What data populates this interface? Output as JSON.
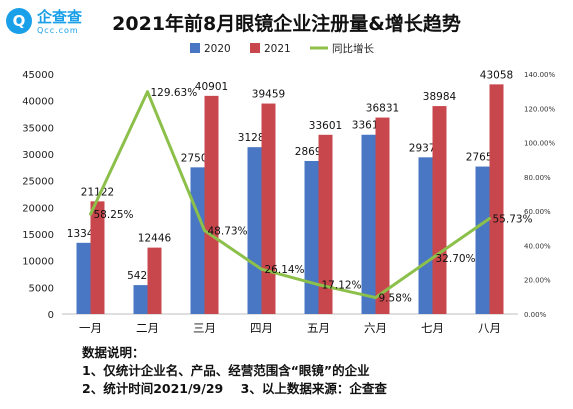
{
  "logo": {
    "glyph": "Q",
    "name": "企查查",
    "domain": "Qcc.com"
  },
  "chart_data": {
    "type": "bar",
    "title": "2021年前8月眼镜企业注册量&增长趋势",
    "categories": [
      "一月",
      "二月",
      "三月",
      "四月",
      "五月",
      "六月",
      "七月",
      "八月"
    ],
    "series": [
      {
        "name": "2020",
        "type": "bar",
        "axis": "left",
        "color": "#4a77c4",
        "values": [
          13347,
          5420,
          27500,
          31281,
          28690,
          33610,
          29377,
          27650
        ],
        "labels": [
          "13347",
          "5420",
          "27500",
          "31281",
          "28690",
          "33610",
          "29377",
          "27650"
        ]
      },
      {
        "name": "2021",
        "type": "bar",
        "axis": "left",
        "color": "#c8474d",
        "values": [
          21122,
          12446,
          40901,
          39459,
          33601,
          36831,
          38984,
          43058
        ],
        "labels": [
          "21122",
          "12446",
          "40901",
          "39459",
          "33601",
          "36831",
          "38984",
          "43058"
        ]
      },
      {
        "name": "同比增长",
        "type": "line",
        "axis": "right",
        "color": "#8cc04a",
        "values": [
          58.25,
          129.63,
          48.73,
          26.14,
          17.12,
          9.58,
          32.7,
          55.73
        ],
        "labels": [
          "58.25%",
          "129.63%",
          "48.73%",
          "26.14%",
          "17.12%",
          "9.58%",
          "32.70%",
          "55.73%"
        ]
      }
    ],
    "ylim": [
      0,
      45000
    ],
    "y_ticks": [
      "0",
      "5000",
      "10000",
      "15000",
      "20000",
      "25000",
      "30000",
      "35000",
      "40000",
      "45000"
    ],
    "y2lim": [
      0,
      140
    ],
    "y2_ticks": [
      "0.00%",
      "20.00%",
      "40.00%",
      "60.00%",
      "80.00%",
      "100.00%",
      "120.00%",
      "140.00%"
    ],
    "legend_position": "top",
    "grid": false
  },
  "notes": {
    "heading": "数据说明：",
    "line1": "1、仅统计企业名、产品、经营范围含“眼镜”的企业",
    "line2": "2、统计时间2021/9/29    3、以上数据来源：企查查"
  }
}
